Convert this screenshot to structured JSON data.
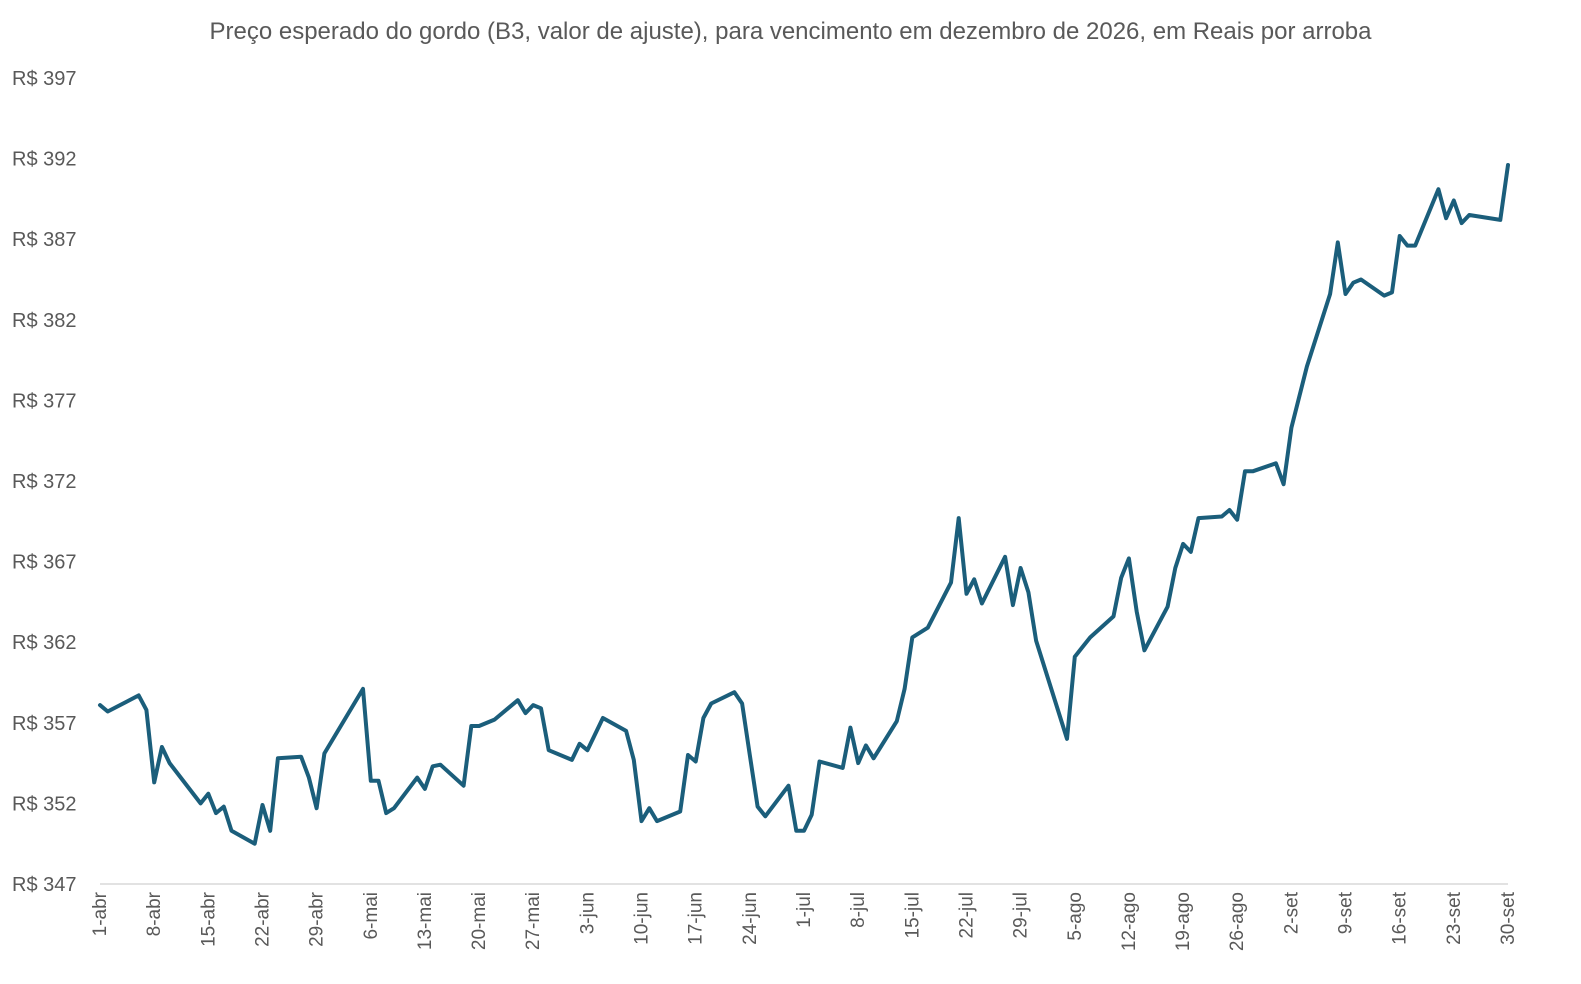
{
  "chart_data": {
    "type": "line",
    "title": "Preço esperado do gordo (B3, valor de ajuste), para vencimento em dezembro de 2026, em Reais por arroba",
    "xlabel": "",
    "ylabel": "",
    "ylim": [
      347,
      397
    ],
    "yticks": [
      347,
      352,
      357,
      362,
      367,
      372,
      377,
      382,
      387,
      392,
      397
    ],
    "ytick_prefix": "R$ ",
    "xrange": [
      "2025-04-01",
      "2025-09-30"
    ],
    "x_tick_labels": [
      "1-abr",
      "8-abr",
      "15-abr",
      "22-abr",
      "29-abr",
      "6-mai",
      "13-mai",
      "20-mai",
      "27-mai",
      "3-jun",
      "10-jun",
      "17-jun",
      "24-jun",
      "1-jul",
      "8-jul",
      "15-jul",
      "22-jul",
      "29-jul",
      "5-ago",
      "12-ago",
      "19-ago",
      "26-ago",
      "2-set",
      "9-set",
      "16-set",
      "23-set",
      "30-set"
    ],
    "x_tick_dates": [
      "2025-04-01",
      "2025-04-08",
      "2025-04-15",
      "2025-04-22",
      "2025-04-29",
      "2025-05-06",
      "2025-05-13",
      "2025-05-20",
      "2025-05-27",
      "2025-06-03",
      "2025-06-10",
      "2025-06-17",
      "2025-06-24",
      "2025-07-01",
      "2025-07-08",
      "2025-07-15",
      "2025-07-22",
      "2025-07-29",
      "2025-08-05",
      "2025-08-12",
      "2025-08-19",
      "2025-08-26",
      "2025-09-02",
      "2025-09-09",
      "2025-09-16",
      "2025-09-23",
      "2025-09-30"
    ],
    "grid": false,
    "legend": "none",
    "color": "#1b5e7b",
    "series": [
      {
        "x": [
          "2025-04-01",
          "2025-04-02",
          "2025-04-06",
          "2025-04-07",
          "2025-04-08",
          "2025-04-09",
          "2025-04-10",
          "2025-04-14",
          "2025-04-15",
          "2025-04-16",
          "2025-04-17",
          "2025-04-18",
          "2025-04-21",
          "2025-04-22",
          "2025-04-23",
          "2025-04-24",
          "2025-04-27",
          "2025-04-28",
          "2025-04-29",
          "2025-04-30",
          "2025-05-05",
          "2025-05-06",
          "2025-05-07",
          "2025-05-08",
          "2025-05-09",
          "2025-05-12",
          "2025-05-13",
          "2025-05-14",
          "2025-05-15",
          "2025-05-18",
          "2025-05-19",
          "2025-05-20",
          "2025-05-22",
          "2025-05-25",
          "2025-05-26",
          "2025-05-27",
          "2025-05-28",
          "2025-05-29",
          "2025-06-01",
          "2025-06-02",
          "2025-06-03",
          "2025-06-05",
          "2025-06-08",
          "2025-06-09",
          "2025-06-10",
          "2025-06-11",
          "2025-06-12",
          "2025-06-15",
          "2025-06-16",
          "2025-06-17",
          "2025-06-18",
          "2025-06-19",
          "2025-06-22",
          "2025-06-23",
          "2025-06-24",
          "2025-06-25",
          "2025-06-26",
          "2025-06-29",
          "2025-06-30",
          "2025-07-01",
          "2025-07-02",
          "2025-07-03",
          "2025-07-06",
          "2025-07-07",
          "2025-07-08",
          "2025-07-09",
          "2025-07-10",
          "2025-07-13",
          "2025-07-14",
          "2025-07-15",
          "2025-07-17",
          "2025-07-20",
          "2025-07-21",
          "2025-07-22",
          "2025-07-23",
          "2025-07-24",
          "2025-07-27",
          "2025-07-28",
          "2025-07-29",
          "2025-07-30",
          "2025-07-31",
          "2025-08-04",
          "2025-08-05",
          "2025-08-06",
          "2025-08-07",
          "2025-08-10",
          "2025-08-11",
          "2025-08-12",
          "2025-08-13",
          "2025-08-14",
          "2025-08-17",
          "2025-08-18",
          "2025-08-19",
          "2025-08-20",
          "2025-08-21",
          "2025-08-24",
          "2025-08-25",
          "2025-08-26",
          "2025-08-27",
          "2025-08-28",
          "2025-08-31",
          "2025-09-01",
          "2025-09-02",
          "2025-09-04",
          "2025-09-07",
          "2025-09-08",
          "2025-09-09",
          "2025-09-10",
          "2025-09-11",
          "2025-09-14",
          "2025-09-15",
          "2025-09-16",
          "2025-09-17",
          "2025-09-18",
          "2025-09-21",
          "2025-09-22",
          "2025-09-23",
          "2025-09-24",
          "2025-09-25",
          "2025-09-29",
          "2025-09-30"
        ],
        "values": [
          358.1,
          357.7,
          358.7,
          357.8,
          353.3,
          355.5,
          354.5,
          352.0,
          352.6,
          351.4,
          351.8,
          350.3,
          349.5,
          351.9,
          350.3,
          354.8,
          354.9,
          353.6,
          351.7,
          355.1,
          359.1,
          353.4,
          353.4,
          351.4,
          351.7,
          353.6,
          352.9,
          354.3,
          354.4,
          353.1,
          356.8,
          356.8,
          357.2,
          358.4,
          357.6,
          358.1,
          357.9,
          355.3,
          354.7,
          355.7,
          355.3,
          357.3,
          356.5,
          354.7,
          350.9,
          351.7,
          350.9,
          351.5,
          355.0,
          354.6,
          357.3,
          358.2,
          358.9,
          358.2,
          355.0,
          351.8,
          351.2,
          353.1,
          350.3,
          350.3,
          351.3,
          354.6,
          354.2,
          356.7,
          354.5,
          355.6,
          354.8,
          357.1,
          359.1,
          362.3,
          362.9,
          365.7,
          369.7,
          365.0,
          365.9,
          364.4,
          367.3,
          364.3,
          366.6,
          365.1,
          362.1,
          356.0,
          361.1,
          361.7,
          362.3,
          363.6,
          366.0,
          367.2,
          363.9,
          361.5,
          364.2,
          366.6,
          368.1,
          367.6,
          369.7,
          369.8,
          370.2,
          369.6,
          372.6,
          372.6,
          373.1,
          371.8,
          375.3,
          379.1,
          383.6,
          386.8,
          383.6,
          384.3,
          384.5,
          383.5,
          383.7,
          387.2,
          386.6,
          386.6,
          390.1,
          388.3,
          389.4,
          388.0,
          388.5,
          388.2,
          391.6
        ]
      }
    ]
  }
}
